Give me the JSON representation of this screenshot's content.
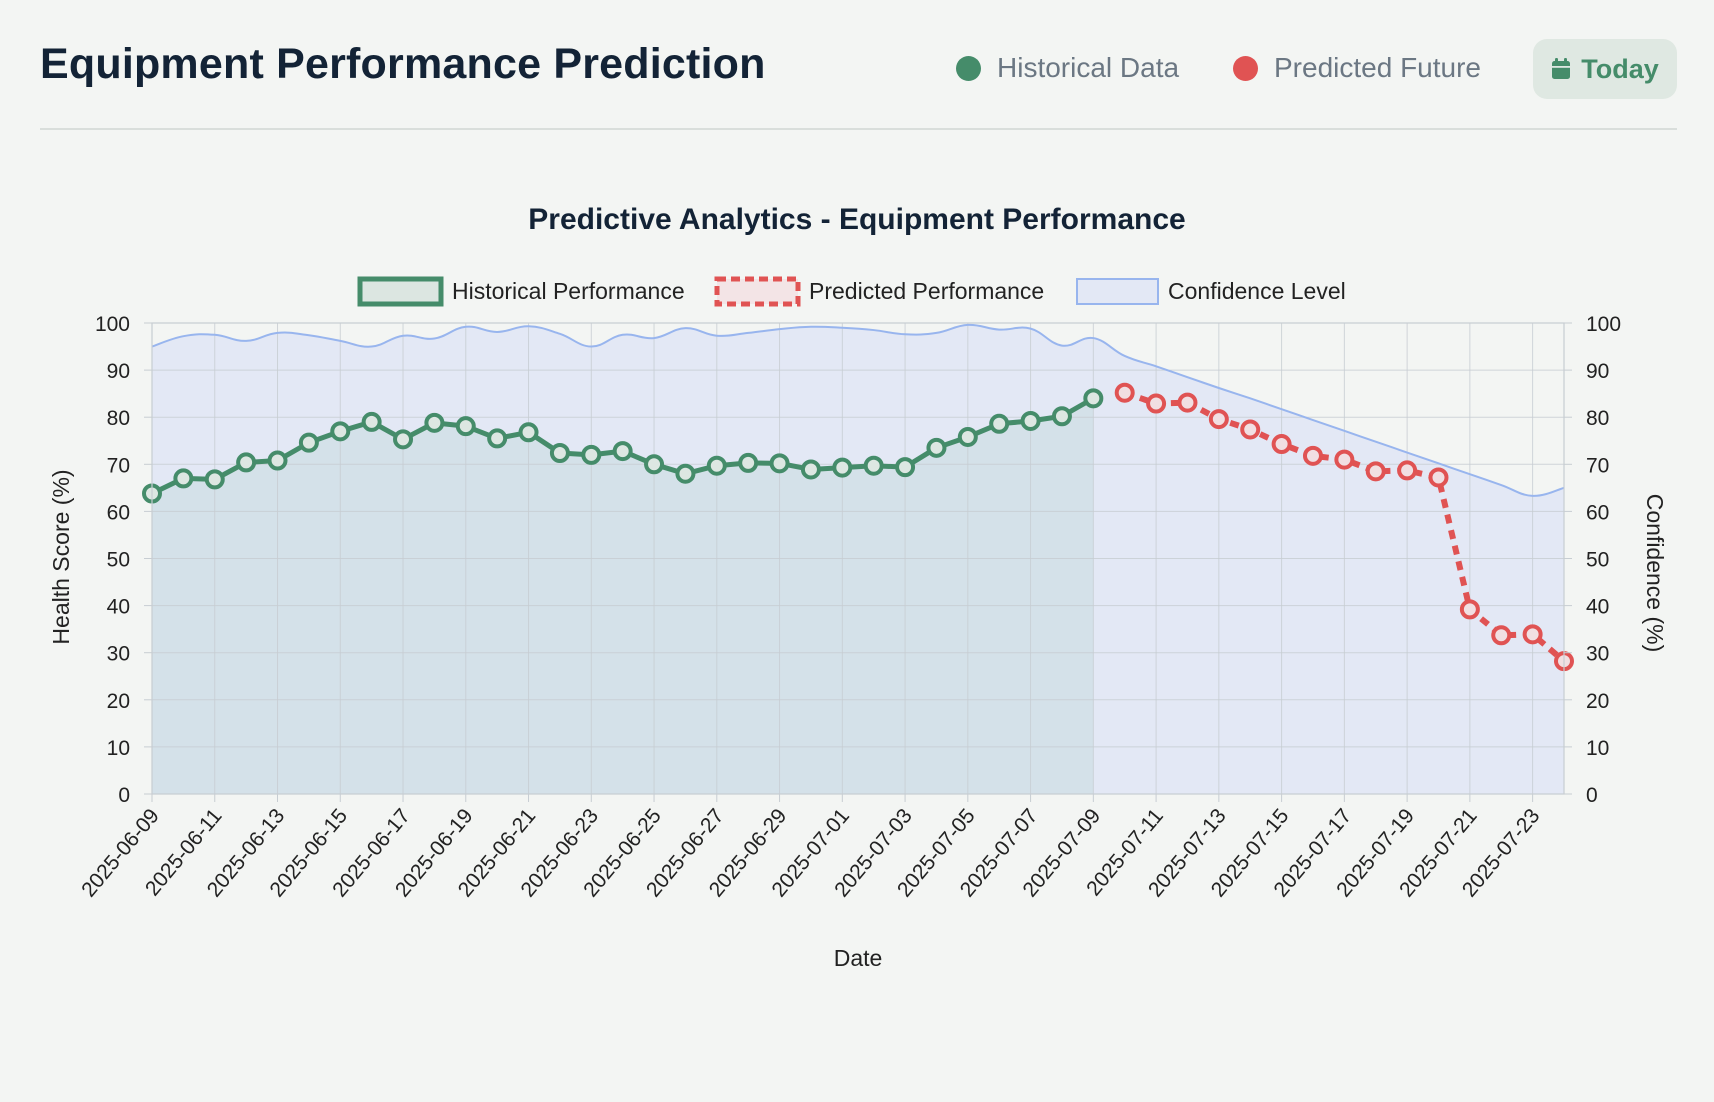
{
  "header": {
    "title": "Equipment Performance Prediction",
    "legend_historical": "Historical Data",
    "legend_predicted": "Predicted Future",
    "today_label": "Today",
    "today_icon": "calendar-icon"
  },
  "colors": {
    "historical": "#458c6a",
    "predicted": "#e05353",
    "confidence_line": "#98b5ee",
    "confidence_fill": "#e3e8f5",
    "historical_fill": "#d1dfe6",
    "grid": "#c7cdd2"
  },
  "chart_data": {
    "type": "line",
    "title": "Predictive Analytics - Equipment Performance",
    "xlabel": "Date",
    "ylabel": "Health Score (%)",
    "y2label": "Confidence (%)",
    "ylim": [
      0,
      100
    ],
    "y2lim": [
      0,
      100
    ],
    "yticks": [
      "0",
      "10",
      "20",
      "30",
      "40",
      "50",
      "60",
      "70",
      "80",
      "90",
      "100"
    ],
    "grid": true,
    "legend_position": "top-center",
    "x": [
      "2025-06-09",
      "2025-06-10",
      "2025-06-11",
      "2025-06-12",
      "2025-06-13",
      "2025-06-14",
      "2025-06-15",
      "2025-06-16",
      "2025-06-17",
      "2025-06-18",
      "2025-06-19",
      "2025-06-20",
      "2025-06-21",
      "2025-06-22",
      "2025-06-23",
      "2025-06-24",
      "2025-06-25",
      "2025-06-26",
      "2025-06-27",
      "2025-06-28",
      "2025-06-29",
      "2025-06-30",
      "2025-07-01",
      "2025-07-02",
      "2025-07-03",
      "2025-07-04",
      "2025-07-05",
      "2025-07-06",
      "2025-07-07",
      "2025-07-08",
      "2025-07-09",
      "2025-07-10",
      "2025-07-11",
      "2025-07-12",
      "2025-07-13",
      "2025-07-14",
      "2025-07-15",
      "2025-07-16",
      "2025-07-17",
      "2025-07-18",
      "2025-07-19",
      "2025-07-20",
      "2025-07-21",
      "2025-07-22",
      "2025-07-23",
      "2025-07-24"
    ],
    "xtick_labels": [
      "2025-06-09",
      "2025-06-11",
      "2025-06-13",
      "2025-06-15",
      "2025-06-17",
      "2025-06-19",
      "2025-06-21",
      "2025-06-23",
      "2025-06-25",
      "2025-06-27",
      "2025-06-29",
      "2025-07-01",
      "2025-07-03",
      "2025-07-05",
      "2025-07-07",
      "2025-07-09",
      "2025-07-11",
      "2025-07-13",
      "2025-07-15",
      "2025-07-17",
      "2025-07-19",
      "2025-07-21",
      "2025-07-23"
    ],
    "series": [
      {
        "name": "Historical Performance",
        "values": [
          63.8,
          67.0,
          66.8,
          70.4,
          70.8,
          74.6,
          77.0,
          79.0,
          75.3,
          78.8,
          78.1,
          75.5,
          76.8,
          72.4,
          72.0,
          72.8,
          70.0,
          68.0,
          69.7,
          70.3,
          70.2,
          68.9,
          69.3,
          69.7,
          69.4,
          73.5,
          75.8,
          78.6,
          79.2,
          80.2,
          84.0,
          null,
          null,
          null,
          null,
          null,
          null,
          null,
          null,
          null,
          null,
          null,
          null,
          null,
          null,
          null
        ]
      },
      {
        "name": "Predicted Performance",
        "values": [
          null,
          null,
          null,
          null,
          null,
          null,
          null,
          null,
          null,
          null,
          null,
          null,
          null,
          null,
          null,
          null,
          null,
          null,
          null,
          null,
          null,
          null,
          null,
          null,
          null,
          null,
          null,
          null,
          null,
          null,
          null,
          85.2,
          82.9,
          83.1,
          79.6,
          77.4,
          74.3,
          71.8,
          71.0,
          68.5,
          68.7,
          67.2,
          39.2,
          33.7,
          33.9,
          28.2
        ]
      },
      {
        "name": "Confidence Level",
        "values": [
          95.0,
          97.2,
          97.5,
          96.2,
          97.9,
          97.4,
          96.2,
          95.0,
          97.3,
          96.7,
          99.2,
          98.1,
          99.3,
          97.7,
          95.0,
          97.5,
          96.8,
          98.9,
          97.3,
          97.9,
          98.7,
          99.2,
          99.0,
          98.5,
          97.6,
          97.9,
          99.6,
          98.6,
          98.8,
          95.2,
          96.8,
          93.0,
          90.8,
          88.5,
          86.2,
          84.0,
          81.7,
          79.4,
          77.1,
          74.8,
          72.5,
          70.2,
          67.9,
          65.6,
          63.3,
          65.0
        ]
      }
    ]
  }
}
